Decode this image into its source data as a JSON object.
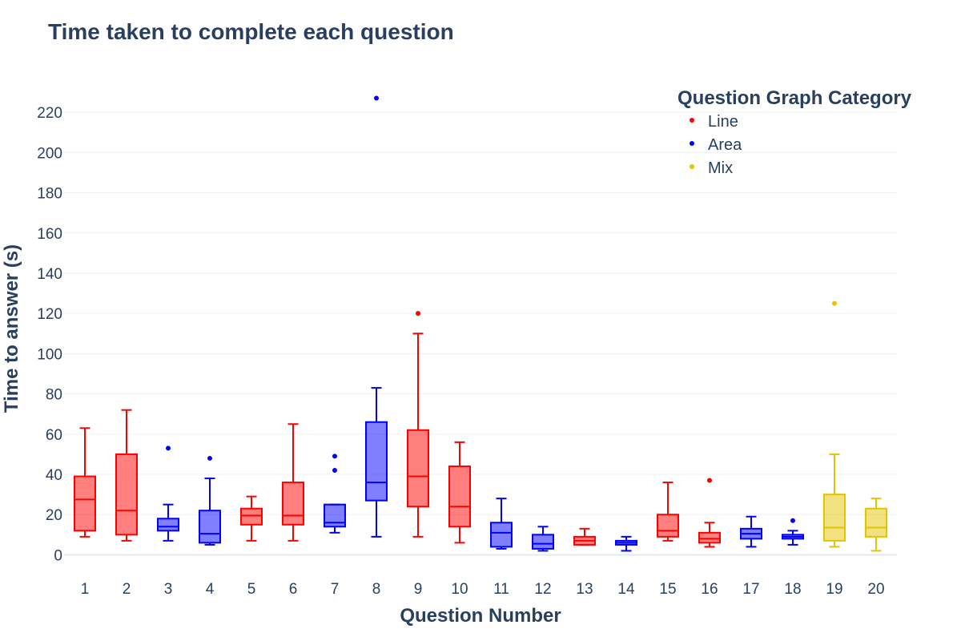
{
  "chart_data": {
    "type": "box",
    "title": "Time taken to complete each question",
    "xlabel": "Question Number",
    "ylabel": "Time to answer (s)",
    "ylim": [
      -5,
      232
    ],
    "yticks": [
      0,
      20,
      40,
      60,
      80,
      100,
      120,
      140,
      160,
      180,
      200,
      220
    ],
    "grid": true,
    "legend": {
      "title": "Question Graph Category",
      "placement": "top-right",
      "items": [
        {
          "name": "Line",
          "color": "#ff0000"
        },
        {
          "name": "Area",
          "color": "#0000ff"
        },
        {
          "name": "Mix",
          "color": "#e3c400"
        }
      ]
    },
    "categories": [
      "1",
      "2",
      "3",
      "4",
      "5",
      "6",
      "7",
      "8",
      "9",
      "10",
      "11",
      "12",
      "13",
      "14",
      "15",
      "16",
      "17",
      "18",
      "19",
      "20"
    ],
    "boxes": [
      {
        "x": "1",
        "group": "Line",
        "min": 9,
        "q1": 12,
        "median": 27.5,
        "q3": 39,
        "max": 63,
        "outliers": []
      },
      {
        "x": "2",
        "group": "Line",
        "min": 7,
        "q1": 10,
        "median": 22,
        "q3": 50,
        "max": 72,
        "outliers": []
      },
      {
        "x": "3",
        "group": "Area",
        "min": 7,
        "q1": 12,
        "median": 14,
        "q3": 18,
        "max": 25,
        "outliers": [
          53
        ]
      },
      {
        "x": "4",
        "group": "Area",
        "min": 5,
        "q1": 6,
        "median": 10.5,
        "q3": 22,
        "max": 38,
        "outliers": [
          48
        ]
      },
      {
        "x": "5",
        "group": "Line",
        "min": 7,
        "q1": 15,
        "median": 19.5,
        "q3": 23,
        "max": 29,
        "outliers": []
      },
      {
        "x": "6",
        "group": "Line",
        "min": 7,
        "q1": 15,
        "median": 19.5,
        "q3": 36,
        "max": 65,
        "outliers": []
      },
      {
        "x": "7",
        "group": "Area",
        "min": 11,
        "q1": 14,
        "median": 16,
        "q3": 25,
        "max": 25,
        "outliers": [
          42,
          49
        ]
      },
      {
        "x": "8",
        "group": "Area",
        "min": 9,
        "q1": 27,
        "median": 36,
        "q3": 66,
        "max": 83,
        "outliers": [
          227
        ]
      },
      {
        "x": "9",
        "group": "Line",
        "min": 9,
        "q1": 24,
        "median": 39,
        "q3": 62,
        "max": 110,
        "outliers": [
          120
        ]
      },
      {
        "x": "10",
        "group": "Line",
        "min": 6,
        "q1": 14,
        "median": 24,
        "q3": 44,
        "max": 56,
        "outliers": []
      },
      {
        "x": "11",
        "group": "Area",
        "min": 3,
        "q1": 4,
        "median": 11,
        "q3": 16,
        "max": 28,
        "outliers": []
      },
      {
        "x": "12",
        "group": "Area",
        "min": 2,
        "q1": 3,
        "median": 5.5,
        "q3": 10,
        "max": 14,
        "outliers": []
      },
      {
        "x": "13",
        "group": "Line",
        "min": 5,
        "q1": 5,
        "median": 7,
        "q3": 9,
        "max": 13,
        "outliers": []
      },
      {
        "x": "14",
        "group": "Area",
        "min": 2,
        "q1": 5,
        "median": 6,
        "q3": 7,
        "max": 9,
        "outliers": []
      },
      {
        "x": "15",
        "group": "Line",
        "min": 7,
        "q1": 9,
        "median": 12,
        "q3": 20,
        "max": 36,
        "outliers": []
      },
      {
        "x": "16",
        "group": "Line",
        "min": 4,
        "q1": 6,
        "median": 8,
        "q3": 11,
        "max": 16,
        "outliers": [
          37
        ]
      },
      {
        "x": "17",
        "group": "Area",
        "min": 4,
        "q1": 8,
        "median": 10.5,
        "q3": 13,
        "max": 19,
        "outliers": []
      },
      {
        "x": "18",
        "group": "Area",
        "min": 5,
        "q1": 8,
        "median": 9,
        "q3": 10,
        "max": 12,
        "outliers": [
          17
        ]
      },
      {
        "x": "19",
        "group": "Mix",
        "min": 4,
        "q1": 7,
        "median": 13.5,
        "q3": 30,
        "max": 50,
        "outliers": [
          125
        ]
      },
      {
        "x": "20",
        "group": "Mix",
        "min": 2,
        "q1": 9,
        "median": 13.5,
        "q3": 23,
        "max": 28,
        "outliers": []
      }
    ]
  }
}
